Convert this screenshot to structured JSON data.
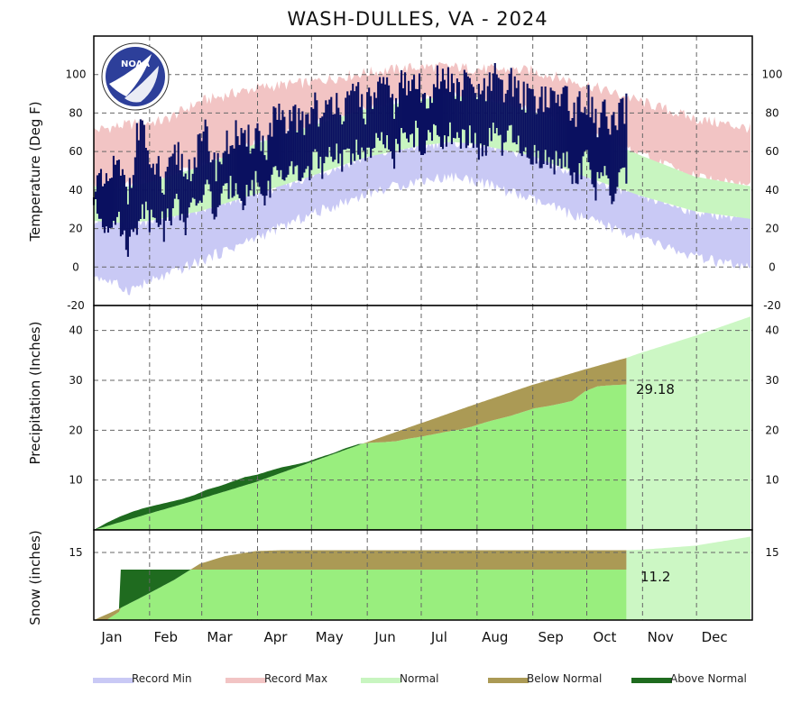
{
  "chart_data": {
    "type": "area",
    "title": "WASH-DULLES, VA - 2024",
    "months": [
      "Jan",
      "Feb",
      "Mar",
      "Apr",
      "May",
      "Jun",
      "Jul",
      "Aug",
      "Sep",
      "Oct",
      "Nov",
      "Dec"
    ],
    "data_through_day": 297,
    "panels": [
      {
        "id": "temperature",
        "ylabel": "Temperature (Deg F)",
        "ylim": [
          -20,
          120
        ],
        "yticks": [
          -20,
          0,
          20,
          40,
          60,
          80,
          100
        ],
        "normal_low": {
          "day": [
            1,
            15,
            32,
            60,
            91,
            121,
            152,
            182,
            200,
            213,
            244,
            274,
            305,
            335,
            366
          ],
          "values": [
            24,
            23,
            24,
            29,
            38,
            47,
            57,
            63,
            65,
            64,
            58,
            47,
            37,
            29,
            25
          ]
        },
        "normal_high": {
          "day": [
            1,
            15,
            32,
            60,
            91,
            121,
            152,
            182,
            200,
            213,
            244,
            274,
            305,
            335,
            366
          ],
          "values": [
            42,
            41,
            44,
            52,
            64,
            73,
            82,
            87,
            89,
            88,
            81,
            70,
            58,
            47,
            42
          ]
        },
        "record_min": {
          "day": [
            1,
            20,
            40,
            60,
            91,
            121,
            152,
            182,
            200,
            213,
            244,
            274,
            305,
            335,
            366
          ],
          "values": [
            -4,
            -12,
            -5,
            3,
            15,
            27,
            38,
            45,
            47,
            45,
            35,
            25,
            15,
            5,
            -1
          ]
        },
        "record_max": {
          "day": [
            1,
            20,
            40,
            60,
            91,
            121,
            152,
            182,
            200,
            213,
            244,
            274,
            305,
            335,
            366
          ],
          "values": [
            71,
            74,
            76,
            86,
            93,
            96,
            101,
            104,
            104,
            103,
            102,
            95,
            86,
            77,
            72
          ]
        },
        "observed_max": {
          "day": [
            1,
            8,
            12,
            16,
            20,
            24,
            28,
            32,
            36,
            40,
            44,
            48,
            52,
            56,
            60,
            64,
            68,
            72,
            76,
            80,
            84,
            88,
            92,
            96,
            100,
            104,
            108,
            112,
            116,
            120,
            124,
            128,
            132,
            136,
            140,
            144,
            148,
            152,
            156,
            160,
            164,
            168,
            172,
            176,
            180,
            184,
            188,
            192,
            196,
            200,
            204,
            208,
            212,
            216,
            220,
            224,
            228,
            232,
            236,
            240,
            244,
            248,
            252,
            256,
            260,
            264,
            268,
            272,
            276,
            280,
            284,
            288,
            292,
            297
          ],
          "values": [
            45,
            40,
            52,
            48,
            38,
            62,
            80,
            45,
            55,
            38,
            52,
            60,
            48,
            55,
            62,
            70,
            52,
            58,
            64,
            70,
            62,
            66,
            72,
            60,
            74,
            80,
            66,
            84,
            72,
            78,
            88,
            74,
            84,
            90,
            80,
            86,
            92,
            82,
            88,
            94,
            90,
            84,
            96,
            92,
            98,
            86,
            92,
            100,
            94,
            98,
            90,
            96,
            94,
            88,
            92,
            98,
            90,
            96,
            94,
            88,
            92,
            86,
            90,
            84,
            88,
            92,
            78,
            84,
            88,
            74,
            82,
            70,
            76,
            82
          ]
        },
        "observed_min": {
          "day": [
            1,
            8,
            12,
            16,
            20,
            24,
            28,
            32,
            36,
            40,
            44,
            48,
            52,
            56,
            60,
            64,
            68,
            72,
            76,
            80,
            84,
            88,
            92,
            96,
            100,
            104,
            108,
            112,
            116,
            120,
            124,
            128,
            132,
            136,
            140,
            144,
            148,
            152,
            156,
            160,
            164,
            168,
            172,
            176,
            180,
            184,
            188,
            192,
            196,
            200,
            204,
            208,
            212,
            216,
            220,
            224,
            228,
            232,
            236,
            240,
            244,
            248,
            252,
            256,
            260,
            264,
            268,
            272,
            276,
            280,
            284,
            288,
            292,
            297
          ],
          "values": [
            30,
            22,
            28,
            20,
            12,
            18,
            34,
            25,
            30,
            20,
            28,
            34,
            22,
            30,
            36,
            42,
            28,
            34,
            40,
            44,
            36,
            40,
            46,
            34,
            46,
            52,
            40,
            52,
            46,
            50,
            58,
            48,
            56,
            62,
            54,
            58,
            64,
            56,
            60,
            66,
            62,
            58,
            68,
            64,
            70,
            60,
            66,
            72,
            66,
            70,
            62,
            68,
            66,
            60,
            64,
            70,
            62,
            68,
            64,
            56,
            60,
            54,
            58,
            52,
            56,
            60,
            46,
            52,
            56,
            40,
            50,
            36,
            42,
            48
          ]
        }
      },
      {
        "id": "precipitation",
        "ylabel": "Precipitation (Inches)",
        "ylim": [
          0,
          45
        ],
        "yticks": [
          10,
          20,
          30,
          40
        ],
        "normal": {
          "day": [
            1,
            32,
            60,
            91,
            121,
            152,
            182,
            213,
            244,
            274,
            297,
            305,
            335,
            366
          ],
          "values": [
            0,
            3.3,
            6.2,
            9.6,
            13.5,
            17.5,
            21.3,
            25.2,
            29.0,
            32.2,
            34.5,
            35.5,
            38.9,
            42.8
          ]
        },
        "observed": {
          "day": [
            1,
            8,
            15,
            22,
            29,
            36,
            43,
            50,
            57,
            64,
            71,
            78,
            85,
            92,
            99,
            106,
            113,
            120,
            127,
            134,
            141,
            148,
            155,
            162,
            169,
            176,
            183,
            190,
            197,
            204,
            211,
            218,
            225,
            232,
            239,
            246,
            253,
            260,
            267,
            274,
            281,
            288,
            297
          ],
          "values": [
            0,
            1.4,
            2.6,
            3.6,
            4.4,
            5.0,
            5.6,
            6.2,
            7.0,
            8.1,
            8.8,
            9.7,
            10.6,
            11.1,
            11.9,
            12.6,
            13.1,
            13.7,
            14.6,
            15.4,
            16.4,
            17.2,
            17.5,
            17.6,
            17.8,
            18.3,
            18.7,
            19.2,
            19.7,
            20.1,
            20.7,
            21.5,
            22.2,
            22.8,
            23.6,
            24.4,
            24.8,
            25.3,
            25.9,
            27.8,
            28.8,
            29.0,
            29.18
          ]
        },
        "label": "29.18"
      },
      {
        "id": "snow",
        "ylabel": "Snow (inches)",
        "ylim": [
          0,
          20
        ],
        "yticks": [
          15
        ],
        "normal": {
          "day": [
            1,
            15,
            32,
            46,
            60,
            74,
            91,
            105,
            297,
            305,
            335,
            366
          ],
          "values": [
            0,
            2.5,
            6.0,
            9.0,
            12.5,
            14.2,
            15.3,
            15.5,
            15.5,
            15.6,
            16.5,
            18.5
          ]
        },
        "observed": {
          "day": [
            1,
            8,
            15,
            16,
            50,
            297
          ],
          "values": [
            0,
            0,
            1.8,
            11.2,
            11.2,
            11.2
          ]
        },
        "label": "11.2"
      }
    ],
    "legend": [
      "Record Min",
      "Record Max",
      "Normal",
      "Below Normal",
      "Above Normal"
    ],
    "colors": {
      "record_min": "#c9c9f5",
      "record_max": "#f2c4c4",
      "normal": "#c8f5c0",
      "normal_precip": "#99ee7e",
      "normal_future": "#ccf7c4",
      "below_normal": "#ab9a55",
      "above_normal": "#1f6b1f",
      "observed": "#0a1060"
    }
  }
}
